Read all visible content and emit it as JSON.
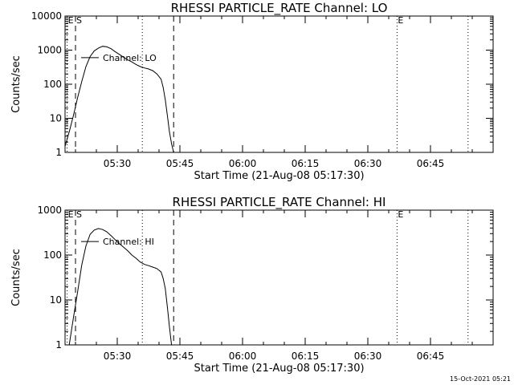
{
  "footer": "15-Oct-2021 05:21",
  "chart_data": [
    {
      "type": "line",
      "title": "RHESSI PARTICLE_RATE Channel: LO",
      "xlabel": "Start Time (21-Aug-08 05:17:30)",
      "ylabel": "Counts/sec",
      "yscale": "log",
      "ylim": [
        1,
        10000
      ],
      "xlim": [
        "05:17:30",
        "07:00:00"
      ],
      "x_ticks": [
        "05:30",
        "05:45",
        "06:00",
        "06:15",
        "06:30",
        "06:45"
      ],
      "y_ticks": [
        "1",
        "10",
        "100",
        "1000",
        "10000"
      ],
      "legend": "Channel: LO",
      "markers": [
        {
          "label": "E",
          "time": "05:18:00",
          "style": "dotted"
        },
        {
          "label": "S",
          "time": "05:20:00",
          "style": "dashed"
        },
        {
          "label": "",
          "time": "05:36:00",
          "style": "dotted"
        },
        {
          "label": "",
          "time": "05:43:30",
          "style": "dashed"
        },
        {
          "label": "E",
          "time": "06:37:00",
          "style": "dotted"
        },
        {
          "label": "",
          "time": "06:54:00",
          "style": "dotted"
        }
      ],
      "series": [
        {
          "x": [
            "05:17:30",
            "05:18:30",
            "05:19:30",
            "05:20:30",
            "05:21:30",
            "05:22:30",
            "05:23:30",
            "05:24:30",
            "05:25:30",
            "05:26:30",
            "05:27:30",
            "05:28:30",
            "05:29:30",
            "05:30:30",
            "05:31:30",
            "05:32:30",
            "05:33:30",
            "05:34:30",
            "05:35:30",
            "05:36:30",
            "05:37:30",
            "05:38:30",
            "05:39:30",
            "05:40:30",
            "05:41:00",
            "05:41:30",
            "05:42:00",
            "05:42:30",
            "05:43:00",
            "05:43:30"
          ],
          "values": [
            1.5,
            4,
            12,
            40,
            120,
            330,
            650,
            950,
            1150,
            1300,
            1250,
            1100,
            900,
            750,
            620,
            520,
            450,
            380,
            330,
            300,
            280,
            250,
            200,
            140,
            80,
            35,
            12,
            4,
            1.8,
            1
          ]
        }
      ]
    },
    {
      "type": "line",
      "title": "RHESSI PARTICLE_RATE Channel: HI",
      "xlabel": "Start Time (21-Aug-08 05:17:30)",
      "ylabel": "Counts/sec",
      "yscale": "log",
      "ylim": [
        1,
        1000
      ],
      "xlim": [
        "05:17:30",
        "07:00:00"
      ],
      "x_ticks": [
        "05:30",
        "05:45",
        "06:00",
        "06:15",
        "06:30",
        "06:45"
      ],
      "y_ticks": [
        "1",
        "10",
        "100",
        "1000"
      ],
      "legend": "Channel: HI",
      "markers": [
        {
          "label": "E",
          "time": "05:18:00",
          "style": "dotted"
        },
        {
          "label": "S",
          "time": "05:20:00",
          "style": "dashed"
        },
        {
          "label": "",
          "time": "05:36:00",
          "style": "dotted"
        },
        {
          "label": "",
          "time": "05:43:30",
          "style": "dashed"
        },
        {
          "label": "E",
          "time": "06:37:00",
          "style": "dotted"
        },
        {
          "label": "",
          "time": "06:54:00",
          "style": "dotted"
        }
      ],
      "series": [
        {
          "x": [
            "05:18:30",
            "05:19:30",
            "05:20:30",
            "05:21:30",
            "05:22:30",
            "05:23:30",
            "05:24:30",
            "05:25:30",
            "05:26:30",
            "05:27:30",
            "05:28:30",
            "05:29:30",
            "05:30:30",
            "05:31:30",
            "05:32:30",
            "05:33:30",
            "05:34:30",
            "05:35:30",
            "05:36:30",
            "05:37:30",
            "05:38:30",
            "05:39:30",
            "05:40:30",
            "05:41:00",
            "05:41:30",
            "05:42:00",
            "05:42:30",
            "05:43:00"
          ],
          "values": [
            1,
            4,
            15,
            60,
            160,
            290,
            360,
            390,
            370,
            330,
            270,
            220,
            180,
            150,
            125,
            100,
            85,
            70,
            62,
            58,
            54,
            50,
            42,
            30,
            18,
            7,
            2.5,
            1
          ]
        }
      ]
    }
  ]
}
